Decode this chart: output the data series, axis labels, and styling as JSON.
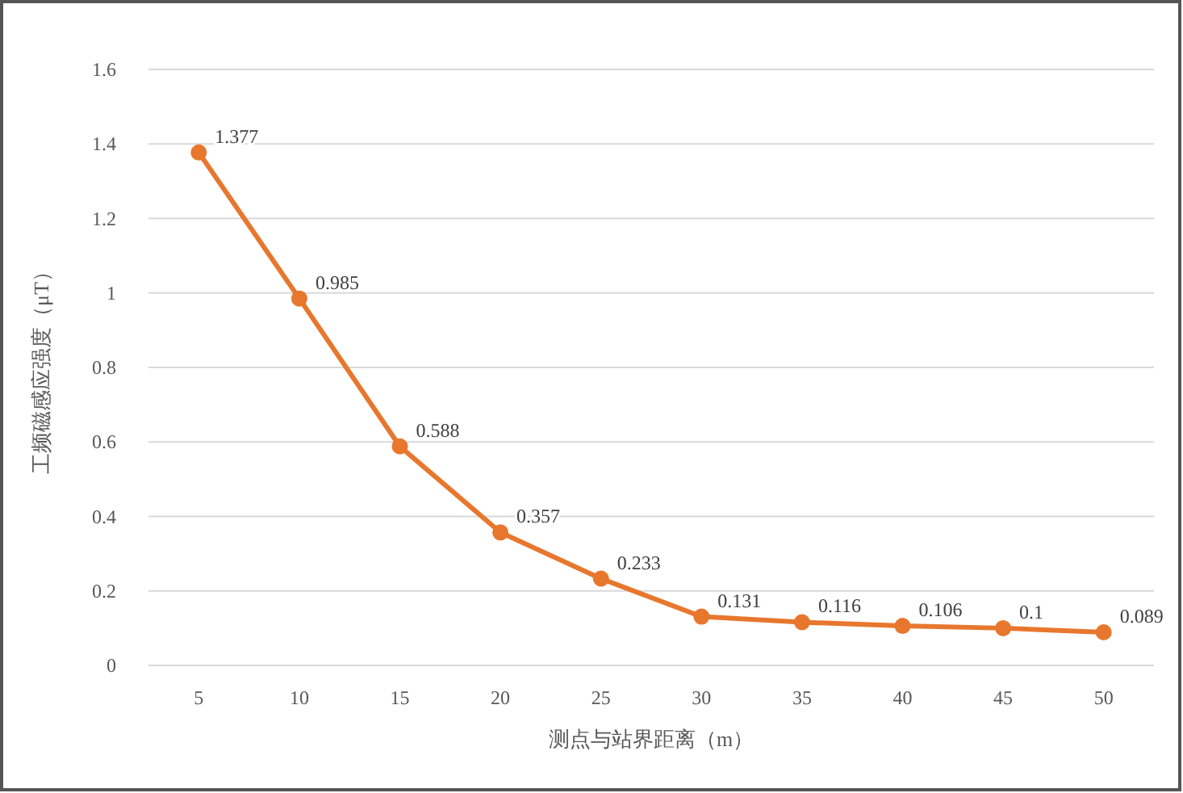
{
  "chart_data": {
    "type": "line",
    "xlabel": "测点与站界距离（m）",
    "ylabel": "工频磁感应强度（μT）",
    "categories": [
      "5",
      "10",
      "15",
      "20",
      "25",
      "30",
      "35",
      "40",
      "45",
      "50"
    ],
    "series": [
      {
        "color": "#e8772e",
        "values": [
          1.377,
          0.985,
          0.588,
          0.357,
          0.233,
          0.131,
          0.116,
          0.106,
          0.1,
          0.089
        ]
      }
    ],
    "ylim": [
      0,
      1.6
    ],
    "yticks": [
      0,
      0.2,
      0.4,
      0.6,
      0.8,
      1,
      1.2,
      1.4,
      1.6
    ],
    "grid": "y",
    "marker": "circle",
    "line_style": "solid",
    "data_labels": true
  }
}
